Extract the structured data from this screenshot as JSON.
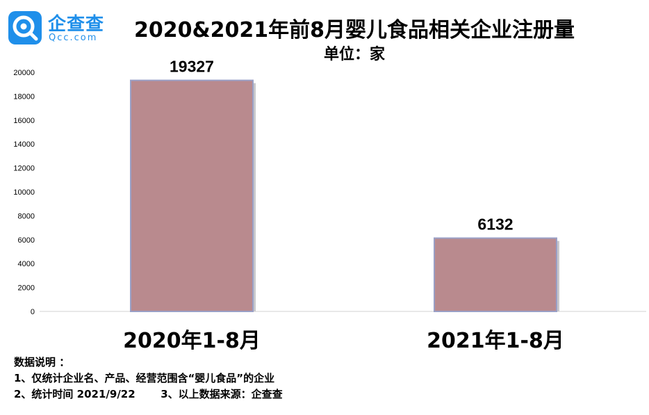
{
  "logo": {
    "name": "企查查",
    "domain": "Qcc.com"
  },
  "chart_data": {
    "type": "bar",
    "title": "2020&2021年前8月婴儿食品相关企业注册量",
    "subtitle": "单位：家",
    "categories": [
      "2020年1-8月",
      "2021年1-8月"
    ],
    "values": [
      19327,
      6132
    ],
    "data_labels": [
      "19327",
      "6132"
    ],
    "ylim": [
      0,
      20000
    ],
    "yticks": [
      0,
      2000,
      4000,
      6000,
      8000,
      10000,
      12000,
      14000,
      16000,
      18000,
      20000
    ],
    "ytick_labels": [
      "0",
      "2000",
      "4000",
      "6000",
      "8000",
      "10000",
      "12000",
      "14000",
      "16000",
      "18000",
      "20000"
    ],
    "grid": false,
    "legend": "none",
    "bar_color": "#b98a8e",
    "bar_edge_color": "#9aa0c6"
  },
  "notes": {
    "heading": "数据说明 ：",
    "line1": "1、仅统计企业名、产品、经营范围含“婴儿食品”的企业",
    "line2": "2、统计时间 2021/9/22       3、以上数据来源：企查查"
  }
}
